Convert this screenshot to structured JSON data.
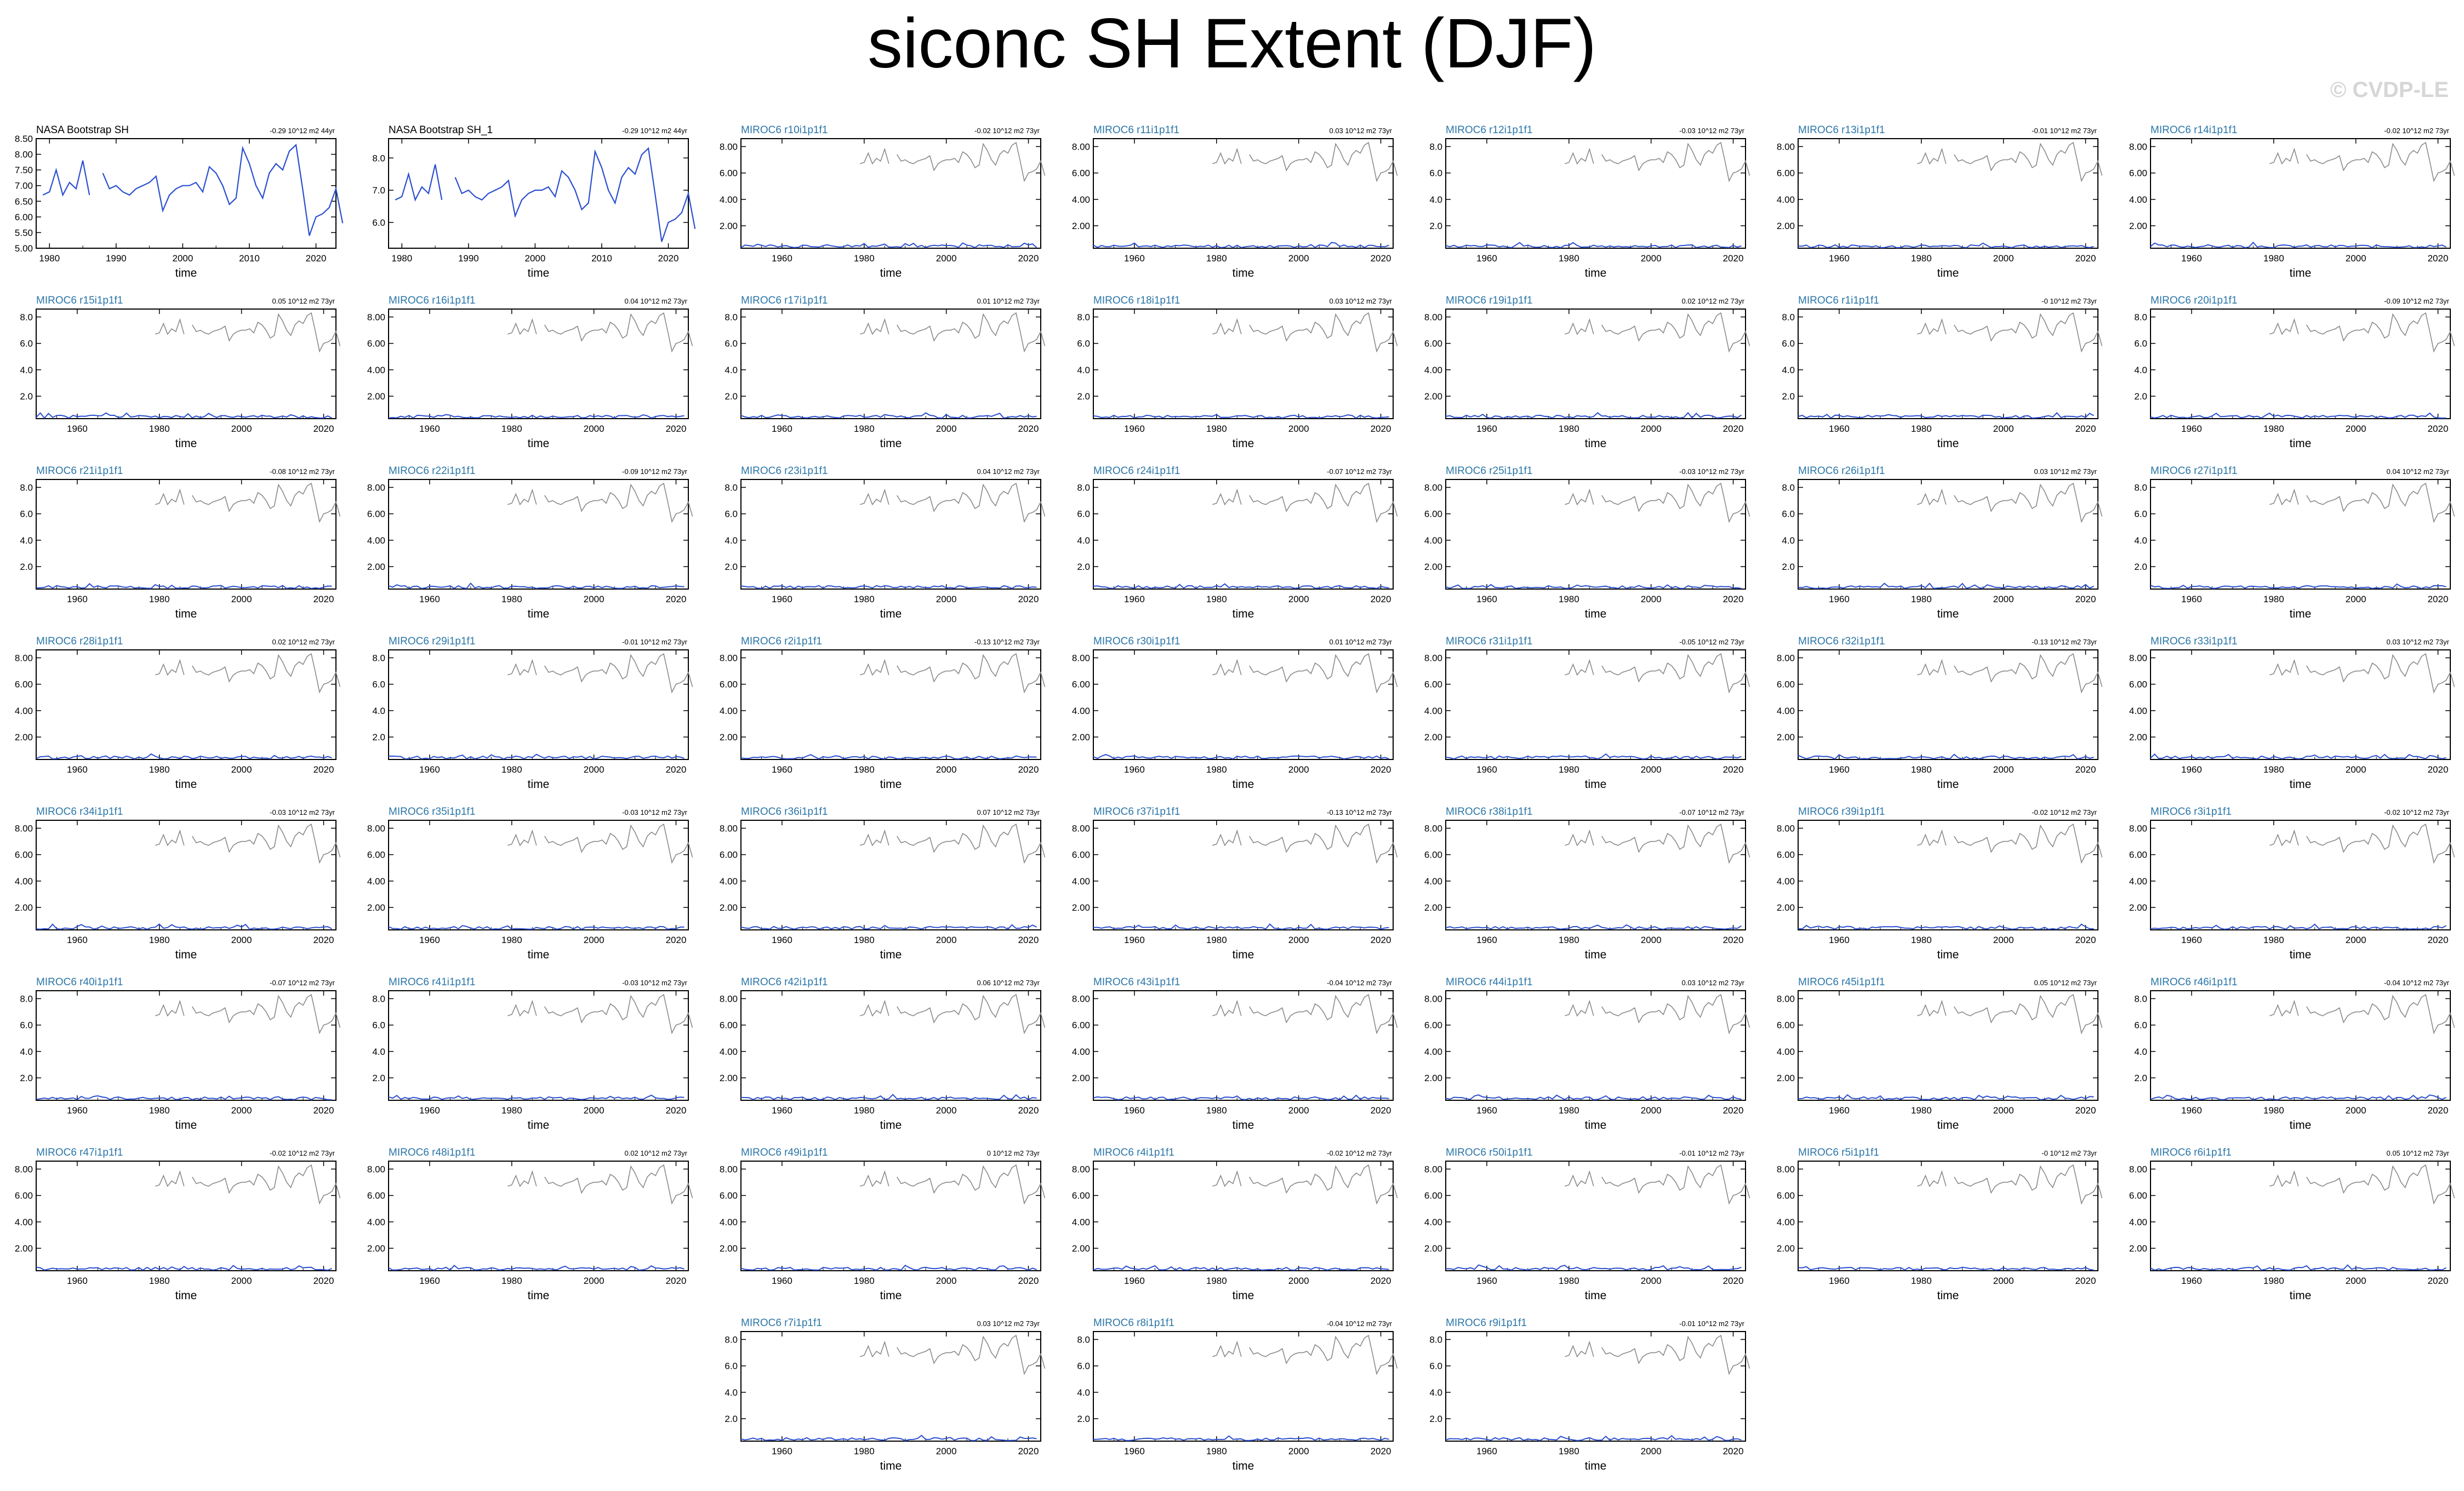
{
  "title": "siconc SH Extent (DJF)",
  "watermark": "© CVDP-LE",
  "colors": {
    "model": "#2b4fd0",
    "obs_gray": "#8a8a8a",
    "obs_line": "#2b4fd0",
    "model_label": "#2a76a8",
    "obs_label": "#000000"
  },
  "chart_data": {
    "type": "line",
    "xlabel": "time",
    "obs_series": [
      6.7,
      6.8,
      7.5,
      6.7,
      7.1,
      6.9,
      7.8,
      6.7,
      null,
      7.4,
      6.9,
      7.0,
      6.8,
      6.7,
      6.9,
      7.0,
      7.1,
      7.3,
      6.2,
      6.7,
      6.9,
      7.0,
      7.0,
      7.1,
      6.8,
      7.6,
      7.4,
      7.0,
      6.4,
      6.6,
      8.2,
      7.7,
      7.0,
      6.6,
      7.4,
      7.7,
      7.5,
      8.1,
      8.3,
      6.9,
      5.4,
      6.0,
      6.1,
      6.3,
      6.9,
      5.8
    ],
    "obs_years_start": 1979,
    "panels": [
      {
        "label": "NASA Bootstrap SH",
        "trend": "-0.29 10^12 m2 44yr",
        "kind": "obs",
        "yticks": [
          "8.50",
          "8.00",
          "7.50",
          "7.00",
          "6.50",
          "6.00",
          "5.50",
          "5.00"
        ],
        "ylim": [
          5.0,
          8.5
        ],
        "xticks": [
          "1980",
          "1990",
          "2000",
          "2010",
          "2020"
        ],
        "xlim": [
          1978,
          2023
        ]
      },
      {
        "label": "NASA Bootstrap SH_1",
        "trend": "-0.29 10^12 m2 44yr",
        "kind": "obs",
        "yticks": [
          "8.0",
          "7.0",
          "6.0"
        ],
        "ylim": [
          5.2,
          8.6
        ],
        "xticks": [
          "1980",
          "1990",
          "2000",
          "2010",
          "2020"
        ],
        "xlim": [
          1978,
          2023
        ]
      },
      {
        "label": "MIROC6 r10i1p1f1",
        "trend": "-0.02 10^12 m2 73yr",
        "kind": "model",
        "yticks": [
          "8.00",
          "6.00",
          "4.00",
          "2.00"
        ],
        "seed": 10
      },
      {
        "label": "MIROC6 r11i1p1f1",
        "trend": "0.03 10^12 m2 73yr",
        "kind": "model",
        "yticks": [
          "8.00",
          "6.00",
          "4.00",
          "2.00"
        ],
        "seed": 11
      },
      {
        "label": "MIROC6 r12i1p1f1",
        "trend": "-0.03 10^12 m2 73yr",
        "kind": "model",
        "yticks": [
          "8.0",
          "6.0",
          "4.0",
          "2.0"
        ],
        "seed": 12
      },
      {
        "label": "MIROC6 r13i1p1f1",
        "trend": "-0.01 10^12 m2 73yr",
        "kind": "model",
        "yticks": [
          "8.00",
          "6.00",
          "4.00",
          "2.00"
        ],
        "seed": 13
      },
      {
        "label": "MIROC6 r14i1p1f1",
        "trend": "-0.02 10^12 m2 73yr",
        "kind": "model",
        "yticks": [
          "8.00",
          "6.00",
          "4.00",
          "2.00"
        ],
        "seed": 14
      },
      {
        "label": "MIROC6 r15i1p1f1",
        "trend": "0.05 10^12 m2 73yr",
        "kind": "model",
        "yticks": [
          "8.0",
          "6.0",
          "4.0",
          "2.0"
        ],
        "seed": 15
      },
      {
        "label": "MIROC6 r16i1p1f1",
        "trend": "0.04 10^12 m2 73yr",
        "kind": "model",
        "yticks": [
          "8.00",
          "6.00",
          "4.00",
          "2.00"
        ],
        "seed": 16
      },
      {
        "label": "MIROC6 r17i1p1f1",
        "trend": "0.01 10^12 m2 73yr",
        "kind": "model",
        "yticks": [
          "8.0",
          "6.0",
          "4.0",
          "2.0"
        ],
        "seed": 17
      },
      {
        "label": "MIROC6 r18i1p1f1",
        "trend": "0.03 10^12 m2 73yr",
        "kind": "model",
        "yticks": [
          "8.0",
          "6.0",
          "4.0",
          "2.0"
        ],
        "seed": 18
      },
      {
        "label": "MIROC6 r19i1p1f1",
        "trend": "0.02 10^12 m2 73yr",
        "kind": "model",
        "yticks": [
          "8.00",
          "6.00",
          "4.00",
          "2.00"
        ],
        "seed": 19
      },
      {
        "label": "MIROC6 r1i1p1f1",
        "trend": "-0 10^12 m2 73yr",
        "kind": "model",
        "yticks": [
          "8.0",
          "6.0",
          "4.0",
          "2.0"
        ],
        "seed": 1
      },
      {
        "label": "MIROC6 r20i1p1f1",
        "trend": "-0.09 10^12 m2 73yr",
        "kind": "model",
        "yticks": [
          "8.0",
          "6.0",
          "4.0",
          "2.0"
        ],
        "seed": 20
      },
      {
        "label": "MIROC6 r21i1p1f1",
        "trend": "-0.08 10^12 m2 73yr",
        "kind": "model",
        "yticks": [
          "8.0",
          "6.0",
          "4.0",
          "2.0"
        ],
        "seed": 21
      },
      {
        "label": "MIROC6 r22i1p1f1",
        "trend": "-0.09 10^12 m2 73yr",
        "kind": "model",
        "yticks": [
          "8.00",
          "6.00",
          "4.00",
          "2.00"
        ],
        "seed": 22
      },
      {
        "label": "MIROC6 r23i1p1f1",
        "trend": "0.04 10^12 m2 73yr",
        "kind": "model",
        "yticks": [
          "8.0",
          "6.0",
          "4.0",
          "2.0"
        ],
        "seed": 23
      },
      {
        "label": "MIROC6 r24i1p1f1",
        "trend": "-0.07 10^12 m2 73yr",
        "kind": "model",
        "yticks": [
          "8.0",
          "6.0",
          "4.0",
          "2.0"
        ],
        "seed": 24
      },
      {
        "label": "MIROC6 r25i1p1f1",
        "trend": "-0.03 10^12 m2 73yr",
        "kind": "model",
        "yticks": [
          "8.00",
          "6.00",
          "4.00",
          "2.00"
        ],
        "seed": 25
      },
      {
        "label": "MIROC6 r26i1p1f1",
        "trend": "0.03 10^12 m2 73yr",
        "kind": "model",
        "yticks": [
          "8.0",
          "6.0",
          "4.0",
          "2.0"
        ],
        "seed": 26
      },
      {
        "label": "MIROC6 r27i1p1f1",
        "trend": "0.04 10^12 m2 73yr",
        "kind": "model",
        "yticks": [
          "8.0",
          "6.0",
          "4.0",
          "2.0"
        ],
        "seed": 27
      },
      {
        "label": "MIROC6 r28i1p1f1",
        "trend": "0.02 10^12 m2 73yr",
        "kind": "model",
        "yticks": [
          "8.00",
          "6.00",
          "4.00",
          "2.00"
        ],
        "seed": 28
      },
      {
        "label": "MIROC6 r29i1p1f1",
        "trend": "-0.01 10^12 m2 73yr",
        "kind": "model",
        "yticks": [
          "8.0",
          "6.0",
          "4.0",
          "2.0"
        ],
        "seed": 29
      },
      {
        "label": "MIROC6 r2i1p1f1",
        "trend": "-0.13 10^12 m2 73yr",
        "kind": "model",
        "yticks": [
          "8.00",
          "6.00",
          "4.00",
          "2.00"
        ],
        "seed": 2
      },
      {
        "label": "MIROC6 r30i1p1f1",
        "trend": "0.01 10^12 m2 73yr",
        "kind": "model",
        "yticks": [
          "8.00",
          "6.00",
          "4.00",
          "2.00"
        ],
        "seed": 30
      },
      {
        "label": "MIROC6 r31i1p1f1",
        "trend": "-0.05 10^12 m2 73yr",
        "kind": "model",
        "yticks": [
          "8.00",
          "6.00",
          "4.00",
          "2.00"
        ],
        "seed": 31
      },
      {
        "label": "MIROC6 r32i1p1f1",
        "trend": "-0.13 10^12 m2 73yr",
        "kind": "model",
        "yticks": [
          "8.00",
          "6.00",
          "4.00",
          "2.00"
        ],
        "seed": 32
      },
      {
        "label": "MIROC6 r33i1p1f1",
        "trend": "0.03 10^12 m2 73yr",
        "kind": "model",
        "yticks": [
          "8.00",
          "6.00",
          "4.00",
          "2.00"
        ],
        "seed": 33
      },
      {
        "label": "MIROC6 r34i1p1f1",
        "trend": "-0.03 10^12 m2 73yr",
        "kind": "model",
        "yticks": [
          "8.00",
          "6.00",
          "4.00",
          "2.00"
        ],
        "seed": 34
      },
      {
        "label": "MIROC6 r35i1p1f1",
        "trend": "-0.03 10^12 m2 73yr",
        "kind": "model",
        "yticks": [
          "8.00",
          "6.00",
          "4.00",
          "2.00"
        ],
        "seed": 35
      },
      {
        "label": "MIROC6 r36i1p1f1",
        "trend": "0.07 10^12 m2 73yr",
        "kind": "model",
        "yticks": [
          "8.00",
          "6.00",
          "4.00",
          "2.00"
        ],
        "seed": 36
      },
      {
        "label": "MIROC6 r37i1p1f1",
        "trend": "-0.13 10^12 m2 73yr",
        "kind": "model",
        "yticks": [
          "8.00",
          "6.00",
          "4.00",
          "2.00"
        ],
        "seed": 37
      },
      {
        "label": "MIROC6 r38i1p1f1",
        "trend": "-0.07 10^12 m2 73yr",
        "kind": "model",
        "yticks": [
          "8.00",
          "6.00",
          "4.00",
          "2.00"
        ],
        "seed": 38
      },
      {
        "label": "MIROC6 r39i1p1f1",
        "trend": "-0.02 10^12 m2 73yr",
        "kind": "model",
        "yticks": [
          "8.00",
          "6.00",
          "4.00",
          "2.00"
        ],
        "seed": 39
      },
      {
        "label": "MIROC6 r3i1p1f1",
        "trend": "-0.02 10^12 m2 73yr",
        "kind": "model",
        "yticks": [
          "8.00",
          "6.00",
          "4.00",
          "2.00"
        ],
        "seed": 3
      },
      {
        "label": "MIROC6 r40i1p1f1",
        "trend": "-0.07 10^12 m2 73yr",
        "kind": "model",
        "yticks": [
          "8.0",
          "6.0",
          "4.0",
          "2.0"
        ],
        "seed": 40
      },
      {
        "label": "MIROC6 r41i1p1f1",
        "trend": "-0.03 10^12 m2 73yr",
        "kind": "model",
        "yticks": [
          "8.0",
          "6.0",
          "4.0",
          "2.0"
        ],
        "seed": 41
      },
      {
        "label": "MIROC6 r42i1p1f1",
        "trend": "0.06 10^12 m2 73yr",
        "kind": "model",
        "yticks": [
          "8.00",
          "6.00",
          "4.00",
          "2.00"
        ],
        "seed": 42
      },
      {
        "label": "MIROC6 r43i1p1f1",
        "trend": "-0.04 10^12 m2 73yr",
        "kind": "model",
        "yticks": [
          "8.00",
          "6.00",
          "4.00",
          "2.00"
        ],
        "seed": 43
      },
      {
        "label": "MIROC6 r44i1p1f1",
        "trend": "0.03 10^12 m2 73yr",
        "kind": "model",
        "yticks": [
          "8.00",
          "6.00",
          "4.00",
          "2.00"
        ],
        "seed": 44
      },
      {
        "label": "MIROC6 r45i1p1f1",
        "trend": "0.05 10^12 m2 73yr",
        "kind": "model",
        "yticks": [
          "8.00",
          "6.00",
          "4.00",
          "2.00"
        ],
        "seed": 45
      },
      {
        "label": "MIROC6 r46i1p1f1",
        "trend": "-0.04 10^12 m2 73yr",
        "kind": "model",
        "yticks": [
          "8.0",
          "6.0",
          "4.0",
          "2.0"
        ],
        "seed": 46
      },
      {
        "label": "MIROC6 r47i1p1f1",
        "trend": "-0.02 10^12 m2 73yr",
        "kind": "model",
        "yticks": [
          "8.00",
          "6.00",
          "4.00",
          "2.00"
        ],
        "seed": 47
      },
      {
        "label": "MIROC6 r48i1p1f1",
        "trend": "0.02 10^12 m2 73yr",
        "kind": "model",
        "yticks": [
          "8.00",
          "6.00",
          "4.00",
          "2.00"
        ],
        "seed": 48
      },
      {
        "label": "MIROC6 r49i1p1f1",
        "trend": "0 10^12 m2 73yr",
        "kind": "model",
        "yticks": [
          "8.00",
          "6.00",
          "4.00",
          "2.00"
        ],
        "seed": 49
      },
      {
        "label": "MIROC6 r4i1p1f1",
        "trend": "-0.02 10^12 m2 73yr",
        "kind": "model",
        "yticks": [
          "8.00",
          "6.00",
          "4.00",
          "2.00"
        ],
        "seed": 4
      },
      {
        "label": "MIROC6 r50i1p1f1",
        "trend": "-0.01 10^12 m2 73yr",
        "kind": "model",
        "yticks": [
          "8.00",
          "6.00",
          "4.00",
          "2.00"
        ],
        "seed": 50
      },
      {
        "label": "MIROC6 r5i1p1f1",
        "trend": "-0 10^12 m2 73yr",
        "kind": "model",
        "yticks": [
          "8.00",
          "6.00",
          "4.00",
          "2.00"
        ],
        "seed": 5
      },
      {
        "label": "MIROC6 r6i1p1f1",
        "trend": "0.05 10^12 m2 73yr",
        "kind": "model",
        "yticks": [
          "8.00",
          "6.00",
          "4.00",
          "2.00"
        ],
        "seed": 6
      },
      {
        "label": "MIROC6 r7i1p1f1",
        "trend": "0.03 10^12 m2 73yr",
        "kind": "model",
        "yticks": [
          "8.0",
          "6.0",
          "4.0",
          "2.0"
        ],
        "seed": 7
      },
      {
        "label": "MIROC6 r8i1p1f1",
        "trend": "-0.04 10^12 m2 73yr",
        "kind": "model",
        "yticks": [
          "8.0",
          "6.0",
          "4.0",
          "2.0"
        ],
        "seed": 8
      },
      {
        "label": "MIROC6 r9i1p1f1",
        "trend": "-0.01 10^12 m2 73yr",
        "kind": "model",
        "yticks": [
          "8.0",
          "6.0",
          "4.0",
          "2.0"
        ],
        "seed": 9
      }
    ],
    "model_xticks": [
      "1960",
      "1980",
      "2000",
      "2020"
    ],
    "model_xlim": [
      1950,
      2023
    ],
    "model_ylim": [
      0.3,
      8.6
    ],
    "model_level": 0.45
  }
}
